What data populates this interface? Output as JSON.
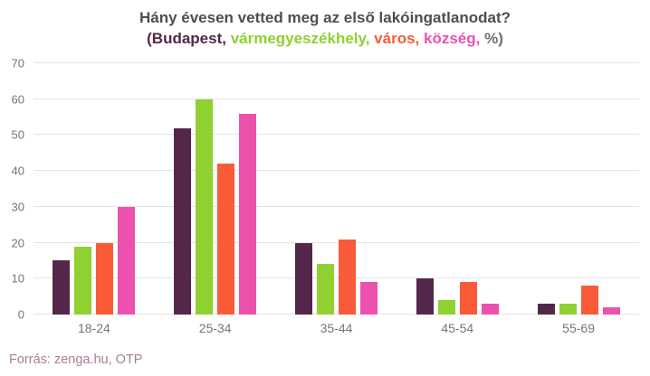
{
  "header": {
    "subtitle_segments": [
      {
        "text": "(Budapest,",
        "color": "#54274a"
      },
      {
        "text": " vármegyeszékhely,",
        "color": "#8ed130"
      },
      {
        "text": " város,",
        "color": "#f95b39"
      },
      {
        "text": " község,",
        "color": "#ec51ae"
      },
      {
        "text": " %)",
        "color": "#6f6f6f"
      }
    ]
  },
  "chart_data": {
    "type": "bar",
    "title": "Hány évesen vetted meg az első lakóingatlanodat?",
    "subtitle": "(Budapest, vármegyeszékhely, város, község, %)",
    "categories": [
      "18-24",
      "25-34",
      "35-44",
      "45-54",
      "55-69"
    ],
    "series": [
      {
        "name": "Budapest",
        "color": "#54274a",
        "values": [
          15,
          52,
          20,
          10,
          3
        ]
      },
      {
        "name": "vármegyeszékhely",
        "color": "#8ed130",
        "values": [
          19,
          60,
          14,
          4,
          3
        ]
      },
      {
        "name": "város",
        "color": "#f95b39",
        "values": [
          20,
          42,
          21,
          9,
          8
        ]
      },
      {
        "name": "község",
        "color": "#ec51ae",
        "values": [
          30,
          56,
          9,
          3,
          2
        ]
      }
    ],
    "xlabel": "",
    "ylabel": "",
    "ylim": [
      0,
      70
    ],
    "yticks": [
      0,
      10,
      20,
      30,
      40,
      50,
      60,
      70
    ],
    "grid": true,
    "legend_position": "in-subtitle"
  },
  "footer": {
    "source": "Forrás: zenga.hu, OTP"
  }
}
